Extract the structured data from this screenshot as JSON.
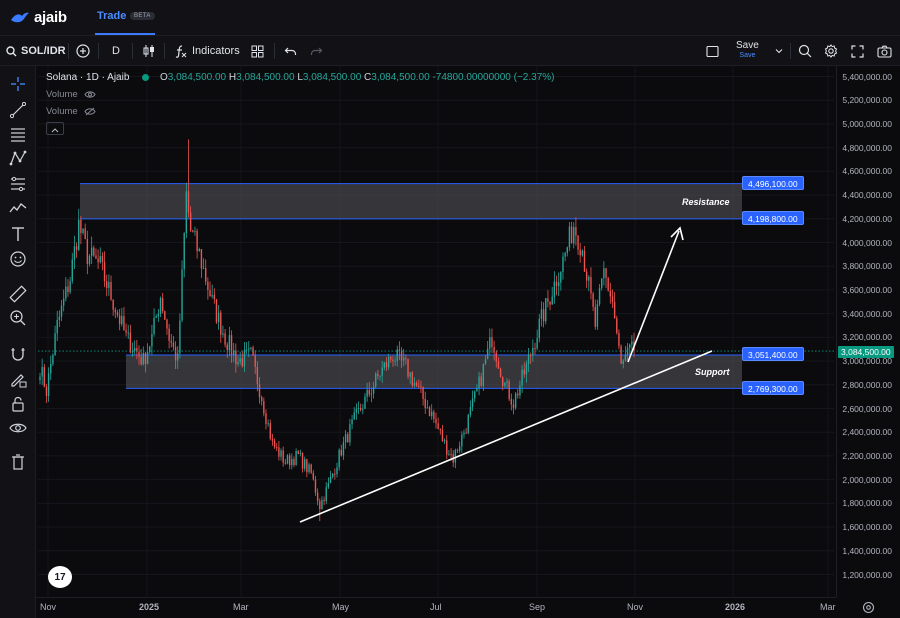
{
  "nav": {
    "brand": "ajaib",
    "tab": "Trade",
    "beta": "BETA"
  },
  "toolbar": {
    "symbol": "SOL/IDR",
    "interval": "D",
    "indicators": "Indicators",
    "save": "Save",
    "save_sub": "Save"
  },
  "legend": {
    "title": "Solana · 1D · Ajaib",
    "o_label": "O",
    "o": "3,084,500.00",
    "h_label": "H",
    "h": "3,084,500.00",
    "l_label": "L",
    "l": "3,084,500.00",
    "c_label": "C",
    "c": "3,084,500.00",
    "change": "-74800.00000000 (−2.37%)",
    "volume1": "Volume",
    "volume2": "Volume"
  },
  "annotations": {
    "resistance": "Resistance",
    "support": "Support",
    "res_high": "4,496,100.00",
    "res_low": "4,198,800.00",
    "sup_high": "3,051,400.00",
    "sup_low": "2,769,300.00",
    "last_price": "3,084,500.00"
  },
  "axis": {
    "prices": [
      "5,400,000.00",
      "5,200,000.00",
      "5,000,000.00",
      "4,800,000.00",
      "4,600,000.00",
      "4,400,000.00",
      "4,200,000.00",
      "4,000,000.00",
      "3,800,000.00",
      "3,600,000.00",
      "3,400,000.00",
      "3,200,000.00",
      "3,000,000.00",
      "2,800,000.00",
      "2,600,000.00",
      "2,400,000.00",
      "2,200,000.00",
      "2,000,000.00",
      "1,800,000.00",
      "1,600,000.00",
      "1,400,000.00",
      "1,200,000.00"
    ],
    "times": [
      {
        "label": "Nov",
        "bold": false
      },
      {
        "label": "2025",
        "bold": true
      },
      {
        "label": "Mar",
        "bold": false
      },
      {
        "label": "May",
        "bold": false
      },
      {
        "label": "Jul",
        "bold": false
      },
      {
        "label": "Sep",
        "bold": false
      },
      {
        "label": "Nov",
        "bold": false
      },
      {
        "label": "2026",
        "bold": true
      },
      {
        "label": "Mar",
        "bold": false
      }
    ]
  },
  "colors": {
    "up": "#26a69a",
    "down": "#ef5350",
    "accent": "#2962ff",
    "zone": "#5a5a5f"
  },
  "chart_data": {
    "type": "candlestick",
    "ylim": [
      1100000,
      5500000
    ],
    "zones": [
      {
        "name": "Resistance",
        "low": 4198800,
        "high": 4496100
      },
      {
        "name": "Support",
        "low": 2769300,
        "high": 3051400
      }
    ],
    "anchors": [
      [
        0,
        2950000
      ],
      [
        3,
        2750000
      ],
      [
        8,
        3300000
      ],
      [
        14,
        3700000
      ],
      [
        18,
        4150000
      ],
      [
        22,
        3900000
      ],
      [
        28,
        3800000
      ],
      [
        34,
        3500000
      ],
      [
        40,
        3200000
      ],
      [
        44,
        3100000
      ],
      [
        48,
        3000000
      ],
      [
        52,
        3200000
      ],
      [
        56,
        3550000
      ],
      [
        60,
        3200000
      ],
      [
        64,
        3000000
      ],
      [
        68,
        4400000
      ],
      [
        70,
        4100000
      ],
      [
        74,
        3900000
      ],
      [
        80,
        3500000
      ],
      [
        86,
        3200000
      ],
      [
        92,
        3000000
      ],
      [
        98,
        3050000
      ],
      [
        103,
        2700000
      ],
      [
        108,
        2300000
      ],
      [
        114,
        2150000
      ],
      [
        120,
        2200000
      ],
      [
        126,
        2050000
      ],
      [
        130,
        1780000
      ],
      [
        134,
        1950000
      ],
      [
        140,
        2250000
      ],
      [
        146,
        2500000
      ],
      [
        152,
        2700000
      ],
      [
        158,
        2900000
      ],
      [
        164,
        3050000
      ],
      [
        170,
        2950000
      ],
      [
        176,
        2750000
      ],
      [
        182,
        2550000
      ],
      [
        188,
        2300000
      ],
      [
        192,
        2180000
      ],
      [
        198,
        2450000
      ],
      [
        204,
        2800000
      ],
      [
        210,
        3200000
      ],
      [
        216,
        2800000
      ],
      [
        220,
        2650000
      ],
      [
        226,
        2950000
      ],
      [
        232,
        3300000
      ],
      [
        238,
        3600000
      ],
      [
        244,
        3900000
      ],
      [
        248,
        4150000
      ],
      [
        252,
        3950000
      ],
      [
        258,
        3300000
      ],
      [
        262,
        3750000
      ],
      [
        266,
        3500000
      ],
      [
        270,
        2950000
      ],
      [
        274,
        3080000
      ],
      [
        276,
        3084500
      ]
    ],
    "trendline": [
      [
        1,
        2
      ],
      [
        2,
        3
      ]
    ],
    "xlabel": "",
    "ylabel": ""
  }
}
